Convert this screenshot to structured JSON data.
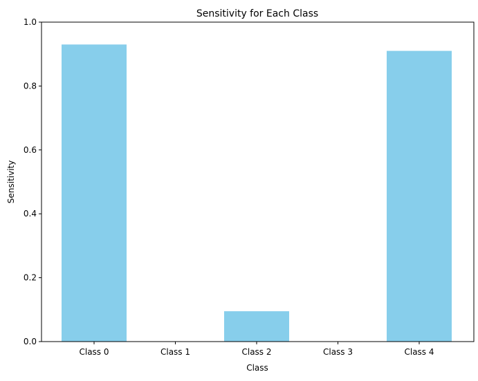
{
  "chart_data": {
    "type": "bar",
    "title": "Sensitivity for Each Class",
    "xlabel": "Class",
    "ylabel": "Sensitivity",
    "categories": [
      "Class 0",
      "Class 1",
      "Class 2",
      "Class 3",
      "Class 4"
    ],
    "values": [
      0.93,
      0.0,
      0.095,
      0.0,
      0.91
    ],
    "ylim": [
      0,
      1.0
    ],
    "yticks": [
      "0.0",
      "0.2",
      "0.4",
      "0.6",
      "0.8",
      "1.0"
    ],
    "ytick_values": [
      0,
      0.2,
      0.4,
      0.6,
      0.8,
      1.0
    ],
    "grid": false,
    "bar_color": "#87ceeb"
  }
}
